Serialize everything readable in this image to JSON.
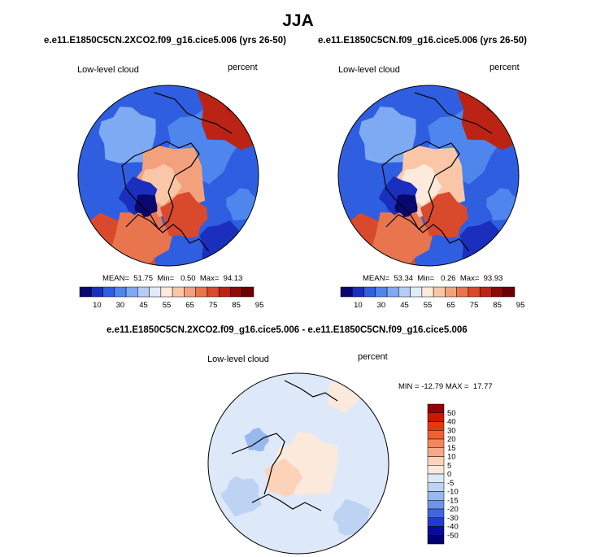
{
  "title": "JJA",
  "panels": [
    {
      "case_title": "e.e11.E1850C5CN.2XCO2.f09_g16.cice5.006 (yrs 26-50)",
      "variable": "Low-level cloud",
      "units": "percent",
      "stats": "MEAN=  51.75  Min=   0.50  Max=  94.13",
      "colorbar_ticks": [
        "10",
        "30",
        "45",
        "55",
        "65",
        "75",
        "85",
        "95"
      ]
    },
    {
      "case_title": "e.e11.E1850C5CN.f09_g16.cice5.006 (yrs 26-50)",
      "variable": "Low-level cloud",
      "units": "percent",
      "stats": "MEAN=  53.34  Min=   0.26  Max=  93.93",
      "colorbar_ticks": [
        "10",
        "30",
        "45",
        "55",
        "65",
        "75",
        "85",
        "95"
      ]
    }
  ],
  "difference": {
    "case_title": "e.e11.E1850C5CN.2XCO2.f09_g16.cice5.006 - e.e11.E1850C5CN.f09_g16.cice5.006",
    "variable": "Low-level cloud",
    "units": "percent",
    "stats": "MIN = -12.79 MAX =  17.77",
    "colorbar_ticks": [
      "50",
      "40",
      "30",
      "20",
      "15",
      "10",
      "5",
      "0",
      "-5",
      "-10",
      "-15",
      "-20",
      "-30",
      "-40",
      "-50"
    ]
  },
  "colors": {
    "abs_scale": [
      "#08086e",
      "#1a2fbd",
      "#2f5fe0",
      "#4f86ee",
      "#7eaaf3",
      "#b3cdf7",
      "#e1ebfb",
      "#fdeadc",
      "#f9c7a8",
      "#f3a17c",
      "#e9754f",
      "#d94a2c",
      "#bb2414",
      "#8f0a05",
      "#6b0202"
    ],
    "diff_scale": [
      "#950000",
      "#c81800",
      "#e23a10",
      "#ef6133",
      "#f4875a",
      "#f8a988",
      "#fcd3b9",
      "#fbe9dc",
      "#dde9f8",
      "#bcd3f3",
      "#98b8ee",
      "#6f95e8",
      "#4066dd",
      "#1f3bd0",
      "#0a0aa0",
      "#000070"
    ]
  }
}
